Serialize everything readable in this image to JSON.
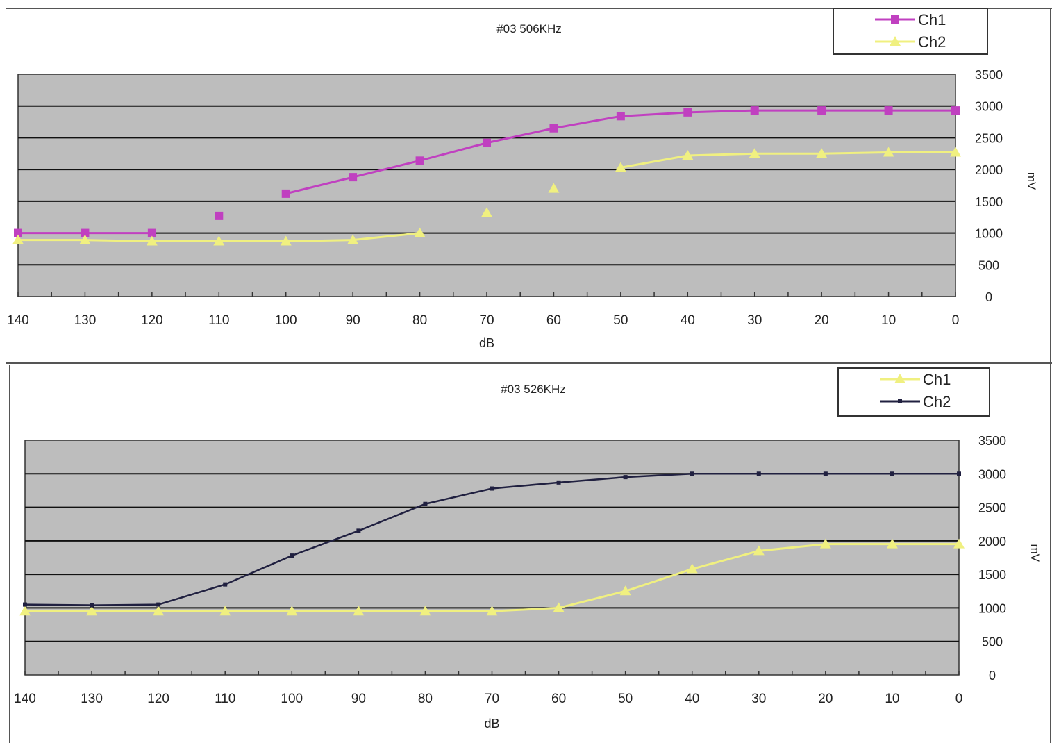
{
  "chart_data": [
    {
      "type": "line",
      "title": "#03 506KHz",
      "xlabel": "dB",
      "ylabel": "mV",
      "x_ticks": [
        "140",
        "130",
        "120",
        "110",
        "100",
        "90",
        "80",
        "70",
        "60",
        "50",
        "40",
        "30",
        "20",
        "10",
        "0"
      ],
      "y_ticks": [
        "0",
        "500",
        "1000",
        "1500",
        "2000",
        "2500",
        "3000",
        "3500"
      ],
      "xlim": [
        140,
        0
      ],
      "ylim": [
        0,
        3500
      ],
      "grid": true,
      "legend_position": "top-right",
      "series": [
        {
          "name": "Ch1",
          "color": "#c040c0",
          "marker": "square",
          "points": [
            [
              140,
              1000
            ],
            [
              130,
              1000
            ],
            [
              120,
              1000
            ],
            [
              110,
              1270
            ],
            [
              100,
              1620
            ],
            [
              90,
              1880
            ],
            [
              80,
              2140
            ],
            [
              70,
              2420
            ],
            [
              60,
              2650
            ],
            [
              50,
              2840
            ],
            [
              40,
              2900
            ],
            [
              30,
              2930
            ],
            [
              20,
              2930
            ],
            [
              10,
              2930
            ],
            [
              0,
              2930
            ]
          ],
          "segments": [
            [
              140,
              120
            ],
            [
              100,
              0
            ]
          ]
        },
        {
          "name": "Ch2",
          "color": "#f0f080",
          "marker": "triangle",
          "points": [
            [
              140,
              890
            ],
            [
              130,
              890
            ],
            [
              120,
              870
            ],
            [
              110,
              870
            ],
            [
              100,
              870
            ],
            [
              90,
              890
            ],
            [
              80,
              1000
            ],
            [
              70,
              1320
            ],
            [
              60,
              1700
            ],
            [
              50,
              2030
            ],
            [
              40,
              2220
            ],
            [
              30,
              2250
            ],
            [
              20,
              2250
            ],
            [
              10,
              2270
            ],
            [
              0,
              2270
            ]
          ],
          "segments": [
            [
              140,
              80
            ],
            [
              50,
              0
            ]
          ]
        }
      ]
    },
    {
      "type": "line",
      "title": "#03 526KHz",
      "xlabel": "dB",
      "ylabel": "mV",
      "x_ticks": [
        "140",
        "130",
        "120",
        "110",
        "100",
        "90",
        "80",
        "70",
        "60",
        "50",
        "40",
        "30",
        "20",
        "10",
        "0"
      ],
      "y_ticks": [
        "0",
        "500",
        "1000",
        "1500",
        "2000",
        "2500",
        "3000",
        "3500"
      ],
      "xlim": [
        140,
        0
      ],
      "ylim": [
        0,
        3500
      ],
      "grid": true,
      "legend_position": "top-right",
      "series": [
        {
          "name": "Ch1",
          "color": "#f0f080",
          "marker": "triangle",
          "points": [
            [
              140,
              950
            ],
            [
              130,
              950
            ],
            [
              120,
              950
            ],
            [
              110,
              950
            ],
            [
              100,
              950
            ],
            [
              90,
              950
            ],
            [
              80,
              950
            ],
            [
              70,
              950
            ],
            [
              60,
              1000
            ],
            [
              50,
              1250
            ],
            [
              40,
              1580
            ],
            [
              30,
              1850
            ],
            [
              20,
              1950
            ],
            [
              10,
              1950
            ],
            [
              0,
              1950
            ]
          ],
          "segments": [
            [
              140,
              0
            ]
          ]
        },
        {
          "name": "Ch2",
          "color": "#202040",
          "marker": "dash",
          "points": [
            [
              140,
              1050
            ],
            [
              130,
              1040
            ],
            [
              120,
              1050
            ],
            [
              110,
              1350
            ],
            [
              100,
              1780
            ],
            [
              90,
              2150
            ],
            [
              80,
              2550
            ],
            [
              70,
              2780
            ],
            [
              60,
              2870
            ],
            [
              50,
              2950
            ],
            [
              40,
              3000
            ],
            [
              30,
              3000
            ],
            [
              20,
              3000
            ],
            [
              10,
              3000
            ],
            [
              0,
              3000
            ]
          ],
          "segments": [
            [
              140,
              0
            ]
          ]
        }
      ]
    }
  ]
}
